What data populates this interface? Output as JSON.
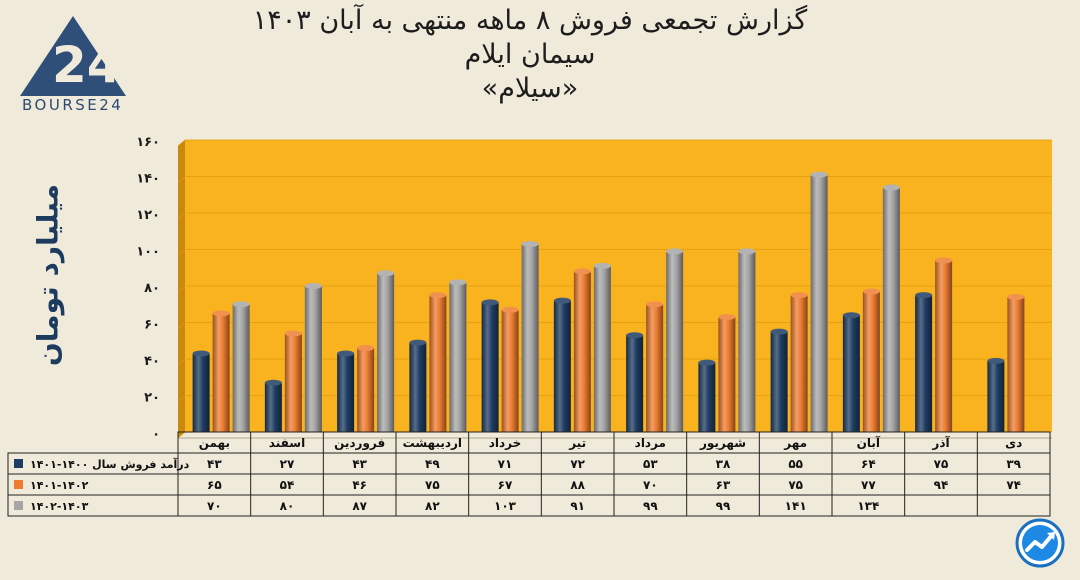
{
  "title": {
    "line1": "گزارش تجمعی فروش ۸ ماهه منتهی به آبان ۱۴۰۳",
    "line2": "سیمان ایلام",
    "line3": "«سیلام»"
  },
  "logo": {
    "text": "BOURSE24",
    "mark": "24"
  },
  "badge": {
    "icon": "trending-up-chart-icon"
  },
  "chart_data": {
    "type": "bar",
    "ylabel": "میلیارد تومان",
    "ylim": [
      0,
      160
    ],
    "yticks": [
      "۰",
      "۲۰",
      "۴۰",
      "۶۰",
      "۸۰",
      "۱۰۰",
      "۱۲۰",
      "۱۴۰",
      "۱۶۰"
    ],
    "categories": [
      "بهمن",
      "اسفند",
      "فروردین",
      "اردیبهشت",
      "خرداد",
      "تیر",
      "مرداد",
      "شهریور",
      "مهر",
      "آبان",
      "آذر",
      "دی"
    ],
    "series": [
      {
        "name": "درآمد فروش سال ۱۴۰۰-۱۴۰۱",
        "color": "#1f3d63",
        "values": [
          43,
          27,
          43,
          49,
          71,
          72,
          53,
          38,
          55,
          64,
          75,
          39
        ],
        "labels": [
          "۴۳",
          "۲۷",
          "۴۳",
          "۴۹",
          "۷۱",
          "۷۲",
          "۵۳",
          "۳۸",
          "۵۵",
          "۶۴",
          "۷۵",
          "۳۹"
        ]
      },
      {
        "name": "۱۴۰۱-۱۴۰۲",
        "color": "#ed7d31",
        "values": [
          65,
          54,
          46,
          75,
          67,
          88,
          70,
          63,
          75,
          77,
          94,
          74
        ],
        "labels": [
          "۶۵",
          "۵۴",
          "۴۶",
          "۷۵",
          "۶۷",
          "۸۸",
          "۷۰",
          "۶۳",
          "۷۵",
          "۷۷",
          "۹۴",
          "۷۴"
        ]
      },
      {
        "name": "۱۴۰۲-۱۴۰۳",
        "color": "#a5a5a5",
        "values": [
          70,
          80,
          87,
          82,
          103,
          91,
          99,
          99,
          141,
          134,
          null,
          null
        ],
        "labels": [
          "۷۰",
          "۸۰",
          "۸۷",
          "۸۲",
          "۱۰۳",
          "۹۱",
          "۹۹",
          "۹۹",
          "۱۴۱",
          "۱۳۴",
          "",
          ""
        ]
      }
    ],
    "plot_background": "#f8b31e",
    "legend": "data-table"
  }
}
